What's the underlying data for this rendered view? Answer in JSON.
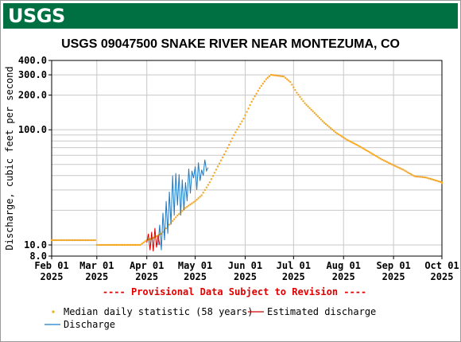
{
  "header": {
    "agency": "USGS"
  },
  "chart_data": {
    "type": "line",
    "title": "USGS 09047500 SNAKE RIVER NEAR MONTEZUMA, CO",
    "ylabel": "Discharge, cubic feet per second",
    "yscale": "log",
    "ylim": [
      8.0,
      400.0
    ],
    "xlim": [
      "2025-02-01",
      "2025-10-01"
    ],
    "grid": true,
    "y_ticks": [
      {
        "value": 8.0,
        "label": "8.0"
      },
      {
        "value": 10.0,
        "label": "10.0"
      },
      {
        "value": 100.0,
        "label": "100.0"
      },
      {
        "value": 200.0,
        "label": "200.0"
      },
      {
        "value": 300.0,
        "label": "300.0"
      },
      {
        "value": 400.0,
        "label": "400.0"
      }
    ],
    "y_minor_grid": [
      20,
      30,
      40,
      50,
      60,
      70,
      80,
      90
    ],
    "x_ticks": [
      {
        "date": "2025-02-01",
        "line1": "Feb 01",
        "line2": "2025"
      },
      {
        "date": "2025-03-01",
        "line1": "Mar 01",
        "line2": "2025"
      },
      {
        "date": "2025-04-01",
        "line1": "Apr 01",
        "line2": "2025"
      },
      {
        "date": "2025-05-01",
        "line1": "May 01",
        "line2": "2025"
      },
      {
        "date": "2025-06-01",
        "line1": "Jun 01",
        "line2": "2025"
      },
      {
        "date": "2025-07-01",
        "line1": "Jul 01",
        "line2": "2025"
      },
      {
        "date": "2025-08-01",
        "line1": "Aug 01",
        "line2": "2025"
      },
      {
        "date": "2025-09-01",
        "line1": "Sep 01",
        "line2": "2025"
      },
      {
        "date": "2025-10-01",
        "line1": "Oct 01",
        "line2": "2025"
      }
    ],
    "provisional_note": "---- Provisional Data Subject to Revision ----",
    "series": [
      {
        "name": "Median daily statistic (58 years)",
        "style": "dots",
        "color": "#f5a623",
        "points": [
          [
            "2025-02-01",
            11.0
          ],
          [
            "2025-02-28",
            11.0
          ],
          [
            "2025-03-01",
            10.0
          ],
          [
            "2025-03-28",
            10.0
          ],
          [
            "2025-04-01",
            11.0
          ],
          [
            "2025-04-05",
            11.5
          ],
          [
            "2025-04-10",
            12.5
          ],
          [
            "2025-04-15",
            15.0
          ],
          [
            "2025-04-20",
            18.0
          ],
          [
            "2025-04-25",
            21.0
          ],
          [
            "2025-05-01",
            24.0
          ],
          [
            "2025-05-05",
            27.0
          ],
          [
            "2025-05-10",
            35.0
          ],
          [
            "2025-05-15",
            48.0
          ],
          [
            "2025-05-20",
            65.0
          ],
          [
            "2025-05-25",
            90.0
          ],
          [
            "2025-05-31",
            125.0
          ],
          [
            "2025-06-05",
            175.0
          ],
          [
            "2025-06-10",
            230.0
          ],
          [
            "2025-06-14",
            275.0
          ],
          [
            "2025-06-17",
            300.0
          ],
          [
            "2025-06-21",
            295.0
          ],
          [
            "2025-06-25",
            290.0
          ],
          [
            "2025-06-29",
            260.0
          ],
          [
            "2025-07-03",
            210.0
          ],
          [
            "2025-07-08",
            170.0
          ],
          [
            "2025-07-14",
            140.0
          ],
          [
            "2025-07-20",
            115.0
          ],
          [
            "2025-07-27",
            95.0
          ],
          [
            "2025-08-03",
            82.0
          ],
          [
            "2025-08-10",
            73.0
          ],
          [
            "2025-08-17",
            64.0
          ],
          [
            "2025-08-24",
            56.0
          ],
          [
            "2025-08-31",
            50.0
          ],
          [
            "2025-09-07",
            45.0
          ],
          [
            "2025-09-14",
            39.5
          ],
          [
            "2025-09-21",
            38.5
          ],
          [
            "2025-09-28",
            36.0
          ],
          [
            "2025-10-02",
            34.5
          ]
        ]
      },
      {
        "name": "Estimated discharge",
        "style": "line",
        "color": "#d40000",
        "points": [
          [
            "2025-04-01",
            10.5
          ],
          [
            "2025-04-02",
            12.5
          ],
          [
            "2025-04-03",
            9.0
          ],
          [
            "2025-04-04",
            13.0
          ],
          [
            "2025-04-05",
            8.8
          ],
          [
            "2025-04-06",
            14.0
          ],
          [
            "2025-04-07",
            9.5
          ],
          [
            "2025-04-08",
            12.0
          ],
          [
            "2025-04-09",
            10.0
          ]
        ]
      },
      {
        "name": "Discharge",
        "style": "line",
        "color": "#1e7bc4",
        "points": [
          [
            "2025-04-08",
            10.0
          ],
          [
            "2025-04-09",
            15.0
          ],
          [
            "2025-04-10",
            9.0
          ],
          [
            "2025-04-11",
            19.0
          ],
          [
            "2025-04-12",
            11.0
          ],
          [
            "2025-04-13",
            24.0
          ],
          [
            "2025-04-14",
            12.5
          ],
          [
            "2025-04-15",
            29.0
          ],
          [
            "2025-04-16",
            15.0
          ],
          [
            "2025-04-17",
            40.0
          ],
          [
            "2025-04-18",
            18.0
          ],
          [
            "2025-04-19",
            42.0
          ],
          [
            "2025-04-20",
            22.0
          ],
          [
            "2025-04-21",
            41.0
          ],
          [
            "2025-04-22",
            18.0
          ],
          [
            "2025-04-23",
            37.0
          ],
          [
            "2025-04-24",
            20.0
          ],
          [
            "2025-04-25",
            35.0
          ],
          [
            "2025-04-26",
            24.0
          ],
          [
            "2025-04-27",
            46.0
          ],
          [
            "2025-04-28",
            28.0
          ],
          [
            "2025-04-29",
            44.0
          ],
          [
            "2025-04-30",
            38.0
          ],
          [
            "2025-05-01",
            48.0
          ],
          [
            "2025-05-02",
            30.0
          ],
          [
            "2025-05-03",
            52.0
          ],
          [
            "2025-05-04",
            36.0
          ],
          [
            "2025-05-05",
            45.0
          ],
          [
            "2025-05-06",
            40.0
          ],
          [
            "2025-05-07",
            55.0
          ],
          [
            "2025-05-08",
            44.0
          ],
          [
            "2025-05-09",
            47.0
          ]
        ]
      }
    ],
    "legend": [
      {
        "label": "Median daily statistic (58 years)",
        "marker": "dot",
        "color": "#f5a623"
      },
      {
        "label": "Estimated discharge",
        "marker": "line",
        "color": "#d40000"
      },
      {
        "label": "Discharge",
        "marker": "line",
        "color": "#1e7bc4"
      }
    ]
  }
}
